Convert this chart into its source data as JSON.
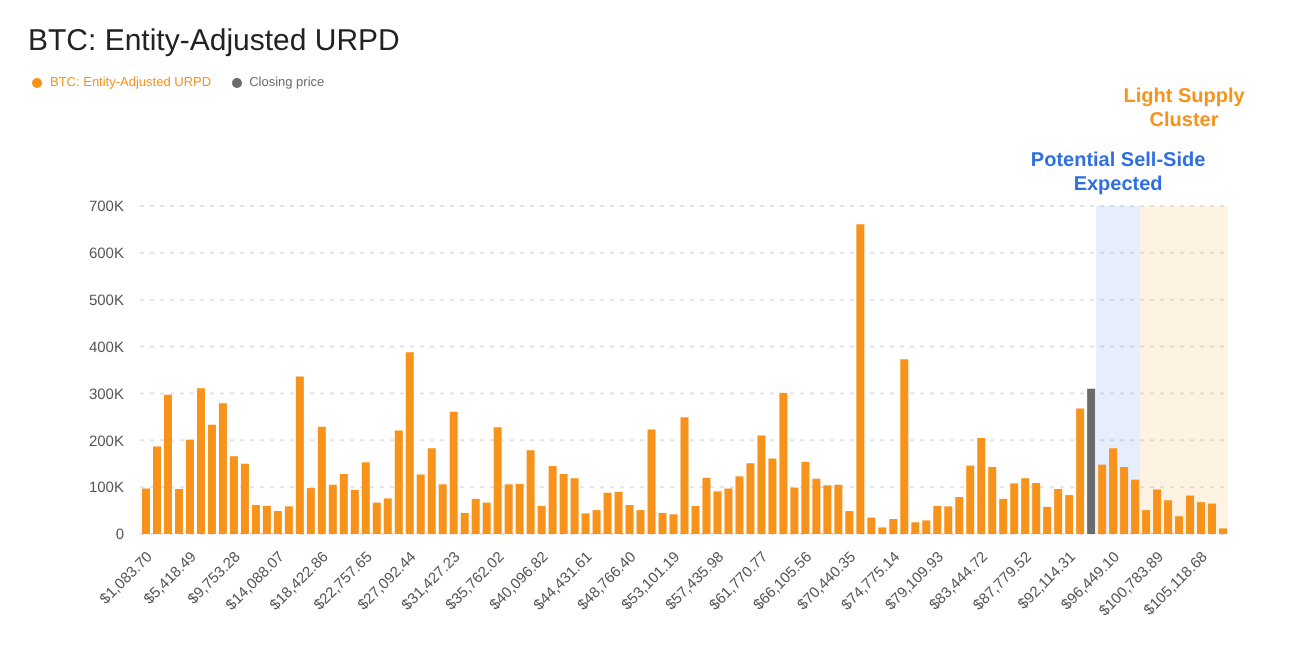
{
  "chart_data": {
    "type": "bar",
    "title": "BTC: Entity-Adjusted URPD",
    "categories": [
      "$1,083.70",
      null,
      null,
      null,
      "$5,418.49",
      null,
      null,
      null,
      "$9,753.28",
      null,
      null,
      null,
      "$14,088.07",
      null,
      null,
      null,
      "$18,422.86",
      null,
      null,
      null,
      "$22,757.65",
      null,
      null,
      null,
      "$27,092.44",
      null,
      null,
      null,
      "$31,427.23",
      null,
      null,
      null,
      "$35,762.02",
      null,
      null,
      null,
      "$40,096.82",
      null,
      null,
      null,
      "$44,431.61",
      null,
      null,
      null,
      "$48,766.40",
      null,
      null,
      null,
      "$53,101.19",
      null,
      null,
      null,
      "$57,435.98",
      null,
      null,
      null,
      "$61,770.77",
      null,
      null,
      null,
      "$66,105.56",
      null,
      null,
      null,
      "$70,440.35",
      null,
      null,
      null,
      "$74,775.14",
      null,
      null,
      null,
      "$79,109.93",
      null,
      null,
      null,
      "$83,444.72",
      null,
      null,
      null,
      "$87,779.52",
      null,
      null,
      null,
      "$92,114.31",
      null,
      null,
      null,
      "$96,449.10",
      null,
      null,
      null,
      "$100,783.89",
      null,
      null,
      null,
      "$105,118.68",
      null,
      null
    ],
    "series": [
      {
        "name": "BTC: Entity-Adjusted URPD",
        "color": "#f7931a",
        "values": [
          97000,
          187000,
          297000,
          96000,
          201000,
          311000,
          233000,
          279000,
          166000,
          150000,
          62000,
          60000,
          49000,
          59000,
          336000,
          98000,
          229000,
          105000,
          128000,
          94000,
          153000,
          67000,
          76000,
          221000,
          388000,
          127000,
          183000,
          106000,
          261000,
          45000,
          75000,
          67000,
          228000,
          106000,
          107000,
          179000,
          60000,
          145000,
          128000,
          119000,
          44000,
          51000,
          88000,
          90000,
          62000,
          51000,
          223000,
          45000,
          42000,
          249000,
          60000,
          120000,
          91000,
          97000,
          123000,
          151000,
          210000,
          161000,
          301000,
          99000,
          154000,
          118000,
          104000,
          105000,
          49000,
          661000,
          35000,
          14000,
          32000,
          373000,
          25000,
          29000,
          60000,
          59000,
          79000,
          146000,
          205000,
          143000,
          75000,
          108000,
          119000,
          109000,
          58000,
          96000,
          83000,
          268000,
          null,
          148000,
          183000,
          143000,
          116000,
          51000,
          95000,
          72000,
          38000,
          82000,
          68000,
          65000,
          12000
        ]
      },
      {
        "name": "Closing price",
        "color": "#6b6b6b",
        "values": [
          null,
          null,
          null,
          null,
          null,
          null,
          null,
          null,
          null,
          null,
          null,
          null,
          null,
          null,
          null,
          null,
          null,
          null,
          null,
          null,
          null,
          null,
          null,
          null,
          null,
          null,
          null,
          null,
          null,
          null,
          null,
          null,
          null,
          null,
          null,
          null,
          null,
          null,
          null,
          null,
          null,
          null,
          null,
          null,
          null,
          null,
          null,
          null,
          null,
          null,
          null,
          null,
          null,
          null,
          null,
          null,
          null,
          null,
          null,
          null,
          null,
          null,
          null,
          null,
          null,
          null,
          null,
          null,
          null,
          null,
          null,
          null,
          null,
          null,
          null,
          null,
          null,
          null,
          null,
          null,
          null,
          null,
          null,
          null,
          null,
          null,
          310000,
          null,
          null,
          null,
          null,
          null,
          null,
          null,
          null,
          null,
          null,
          null,
          null
        ]
      }
    ],
    "stacked": true,
    "ylim": [
      0,
      700000
    ],
    "yticks": [
      {
        "value": 0,
        "label": "0"
      },
      {
        "value": 100000,
        "label": "100K"
      },
      {
        "value": 200000,
        "label": "200K"
      },
      {
        "value": 300000,
        "label": "300K"
      },
      {
        "value": 400000,
        "label": "400K"
      },
      {
        "value": 500000,
        "label": "500K"
      },
      {
        "value": 600000,
        "label": "600K"
      },
      {
        "value": 700000,
        "label": "700K"
      }
    ],
    "annotations": [
      "Potential Sell-Side Expected",
      "Light Supply Cluster"
    ],
    "grid": "y",
    "legend": "top left"
  }
}
